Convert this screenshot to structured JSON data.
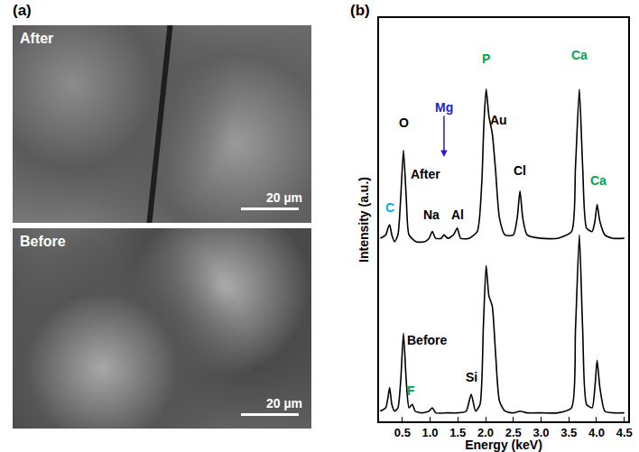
{
  "panel_labels": [
    "(a)",
    "(b)"
  ],
  "images": [
    {
      "label": "After",
      "scale_bar": "20 µm"
    },
    {
      "label": "Before",
      "scale_bar": "20 µm"
    }
  ],
  "chart_data": {
    "type": "line",
    "x_label": "Energy (keV)",
    "y_label": "Intensity (a.u.)",
    "xlim": [
      0.08,
      4.57
    ],
    "xticks": [
      0.5,
      {
        "value": 1,
        "label": "1.0"
      },
      1.5,
      {
        "value": 2,
        "label": "2.0"
      },
      2.5,
      {
        "value": 3,
        "label": "3.0"
      },
      3.5,
      {
        "value": 4,
        "label": "4.0"
      },
      4.5
    ],
    "ylim": [
      0,
      119
    ],
    "yticks": [],
    "tick_labels": "x",
    "grid": false,
    "legend": false,
    "series": [
      {
        "name": "After",
        "color": "#000000",
        "x": [
          0.1,
          0.2,
          0.24,
          0.27,
          0.31,
          0.36,
          0.42,
          0.47,
          0.52,
          0.57,
          0.62,
          0.75,
          0.9,
          0.98,
          1.04,
          1.1,
          1.2,
          1.25,
          1.32,
          1.42,
          1.49,
          1.55,
          1.7,
          1.85,
          1.93,
          1.97,
          2.01,
          2.06,
          2.12,
          2.18,
          2.25,
          2.35,
          2.5,
          2.57,
          2.62,
          2.67,
          2.75,
          3.0,
          3.3,
          3.55,
          3.62,
          3.69,
          3.75,
          3.82,
          3.92,
          3.97,
          4.01,
          4.06,
          4.15,
          4.3,
          4.5
        ],
        "values": [
          54,
          55,
          57,
          58,
          55,
          53,
          55,
          66,
          80,
          66,
          55,
          53,
          53,
          54,
          56,
          54,
          54,
          55,
          54,
          55,
          57,
          54,
          54,
          56,
          70,
          88,
          98,
          90,
          85,
          74,
          60,
          55,
          55,
          60,
          68,
          60,
          55,
          54,
          54,
          56,
          75,
          98,
          75,
          57,
          56,
          59,
          64,
          59,
          55,
          54,
          54
        ]
      },
      {
        "name": "Before",
        "color": "#000000",
        "x": [
          0.1,
          0.2,
          0.24,
          0.27,
          0.31,
          0.36,
          0.42,
          0.47,
          0.52,
          0.57,
          0.62,
          0.68,
          0.73,
          0.85,
          0.98,
          1.04,
          1.1,
          1.3,
          1.5,
          1.65,
          1.74,
          1.82,
          1.9,
          1.96,
          2.01,
          2.06,
          2.12,
          2.18,
          2.25,
          2.35,
          2.5,
          2.62,
          2.75,
          3.0,
          3.3,
          3.55,
          3.62,
          3.69,
          3.75,
          3.82,
          3.92,
          3.97,
          4.01,
          4.06,
          4.15,
          4.3,
          4.5
        ],
        "values": [
          3,
          4,
          7,
          10,
          5,
          3,
          4,
          12,
          26,
          12,
          4,
          5,
          3,
          2.5,
          3,
          4,
          2.5,
          2.5,
          2.5,
          3,
          8,
          3,
          5,
          28,
          46,
          37,
          34,
          20,
          6,
          3,
          2.5,
          3,
          2.5,
          2.5,
          2.5,
          4,
          27,
          55,
          27,
          5,
          4,
          10,
          18,
          10,
          3,
          2.5,
          2.5
        ]
      }
    ],
    "annotations": [
      {
        "text": "After",
        "x": 0.92,
        "y": 73,
        "color": "#000000"
      },
      {
        "text": "Before",
        "x": 0.95,
        "y": 24,
        "color": "#000000"
      },
      {
        "text": "C",
        "x": 0.27,
        "y": 63,
        "color": "#00b0f0"
      },
      {
        "text": "O",
        "x": 0.52,
        "y": 88,
        "color": "#000000"
      },
      {
        "text": "Mg",
        "x": 1.25,
        "y": 78,
        "color": "#1f1fd1",
        "marker": "arrow"
      },
      {
        "text": "Na",
        "x": 1.03,
        "y": 61,
        "color": "#000000"
      },
      {
        "text": "Al",
        "x": 1.5,
        "y": 61,
        "color": "#000000"
      },
      {
        "text": "P",
        "x": 2.01,
        "y": 107,
        "color": "#00a651"
      },
      {
        "text": "Au",
        "x": 2.24,
        "y": 89,
        "color": "#000000"
      },
      {
        "text": "Cl",
        "x": 2.62,
        "y": 74,
        "color": "#000000"
      },
      {
        "text": "Ca",
        "x": 3.69,
        "y": 108,
        "color": "#00a651"
      },
      {
        "text": "Ca",
        "x": 4.04,
        "y": 71,
        "color": "#00a651"
      },
      {
        "text": "Si",
        "x": 1.74,
        "y": 13,
        "color": "#000000"
      },
      {
        "text": "F",
        "x": 0.66,
        "y": 9,
        "color": "#00a651"
      }
    ]
  }
}
